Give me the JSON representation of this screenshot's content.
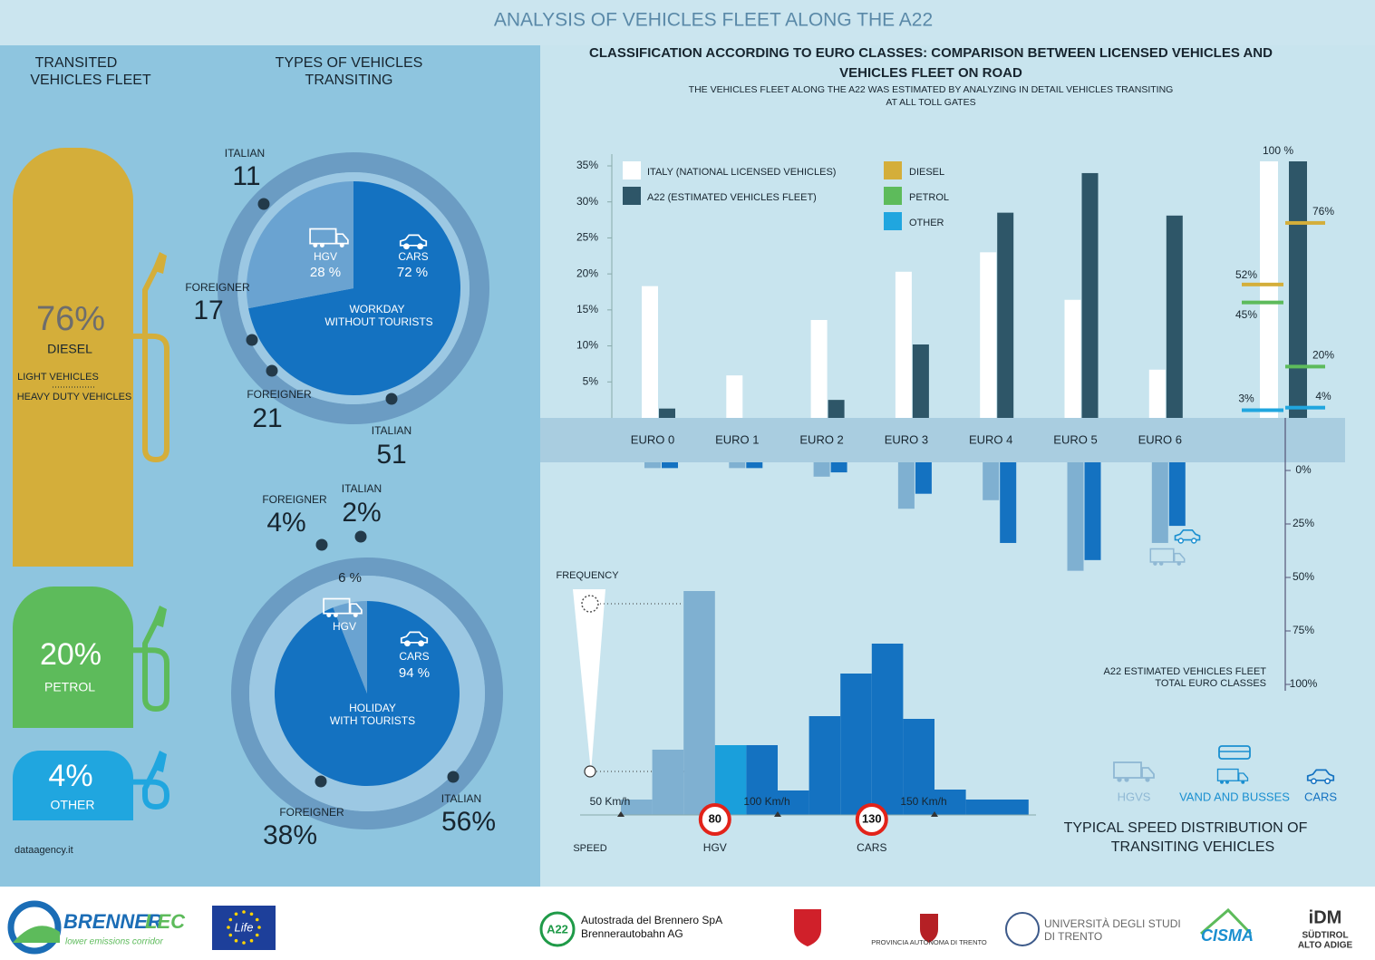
{
  "header": {
    "title": "ANALYSIS OF VEHICLES FLEET ALONG THE A22"
  },
  "fleet": {
    "title": [
      "TRANSITED",
      "VEHICLES FLEET"
    ],
    "items": [
      {
        "value": "76%",
        "name": "DIESEL",
        "color": "#d4ae3a"
      },
      {
        "value": "20%",
        "name": "PETROL",
        "color": "#5dbb5b"
      },
      {
        "value": "4%",
        "name": "OTHER",
        "color": "#20a6df"
      }
    ],
    "diesel_notes": [
      "LIGHT VEHICLES",
      "HEAVY DUTY VEHICLES"
    ],
    "source": "dataagency.it"
  },
  "types": {
    "title": [
      "TYPES OF VEHICLES",
      "TRANSITING"
    ],
    "charts": [
      {
        "caption": [
          "WORKDAY",
          "WITHOUT TOURISTS"
        ],
        "slices": [
          {
            "name": "CARS",
            "value": 72,
            "label": "72 %",
            "color": "#1472c1",
            "origins": [
              {
                "name": "FOREIGNER",
                "value": "21"
              },
              {
                "name": "ITALIAN",
                "value": "51"
              }
            ]
          },
          {
            "name": "HGV",
            "value": 28,
            "label": "28 %",
            "color": "#6aa3d1",
            "origins": [
              {
                "name": "ITALIAN",
                "value": "11"
              },
              {
                "name": "FOREIGNER",
                "value": "17"
              }
            ]
          }
        ]
      },
      {
        "caption": [
          "HOLIDAY",
          "WITH TOURISTS"
        ],
        "slices": [
          {
            "name": "CARS",
            "value": 94,
            "label": "94 %",
            "color": "#1472c1",
            "origins": [
              {
                "name": "FOREIGNER",
                "value": "38%"
              },
              {
                "name": "ITALIAN",
                "value": "56%"
              }
            ]
          },
          {
            "name": "HGV",
            "value": 6,
            "label": "6 %",
            "color": "#6aa3d1",
            "origins": [
              {
                "name": "FOREIGNER",
                "value": "4%"
              },
              {
                "name": "ITALIAN",
                "value": "2%"
              }
            ]
          }
        ]
      }
    ]
  },
  "euro": {
    "title": [
      "CLASSIFICATION ACCORDING TO EURO CLASSES: COMPARISON BETWEEN LICENSED VEHICLES AND",
      "VEHICLES FLEET ON ROAD"
    ],
    "subtitle": [
      "THE VEHICLES FLEET ALONG THE A22 WAS ESTIMATED BY ANALYZING IN DETAIL VEHICLES TRANSITING",
      "AT ALL TOLL GATES"
    ],
    "categories": [
      "EURO 0",
      "EURO 1",
      "EURO 2",
      "EURO 3",
      "EURO 4",
      "EURO 5",
      "EURO 6"
    ],
    "ylim": [
      0,
      35
    ],
    "yticks": [
      {
        "value": 5,
        "label": "5%"
      },
      {
        "value": 10,
        "label": "10%"
      },
      {
        "value": 15,
        "label": "15%"
      },
      {
        "value": 20,
        "label": "20%"
      },
      {
        "value": 25,
        "label": "25%"
      },
      {
        "value": 30,
        "label": "30%"
      },
      {
        "value": 35,
        "label": "35%"
      }
    ],
    "series": [
      {
        "name": "ITALY (NATIONAL LICENSED VEHICLES)",
        "color": "#ffffff",
        "values": [
          18.3,
          5.9,
          13.6,
          20.3,
          23,
          16.4,
          6.7
        ]
      },
      {
        "name": "A22 (ESTIMATED VEHICLES FLEET)",
        "color": "#2e5668",
        "values": [
          1.3,
          0,
          2.5,
          10.2,
          28.5,
          34,
          28.1
        ]
      }
    ],
    "lower": {
      "ylim": [
        0,
        100
      ],
      "yticks": [
        {
          "value": 0,
          "label": "0%"
        },
        {
          "value": 25,
          "label": "25%"
        },
        {
          "value": 50,
          "label": "50%"
        },
        {
          "value": 75,
          "label": "75%"
        },
        {
          "value": 100,
          "label": "100%"
        }
      ],
      "series": [
        {
          "color": "#7fb0d1",
          "values": [
            1,
            1,
            5,
            20,
            16,
            49,
            36
          ]
        },
        {
          "color": "#1472c1",
          "values": [
            1,
            1,
            3,
            13,
            36,
            44,
            28
          ]
        }
      ]
    },
    "fuel": {
      "types": [
        {
          "name": "DIESEL",
          "color": "#d4ae3a"
        },
        {
          "name": "PETROL",
          "color": "#5dbb5b"
        },
        {
          "name": "OTHER",
          "color": "#20a6df"
        }
      ],
      "total": {
        "value": 100,
        "label": "100 %"
      },
      "italy": {
        "values": [
          52,
          45,
          3
        ],
        "value_labels": [
          "52%",
          "45%",
          "3%"
        ]
      },
      "a22": {
        "values": [
          76,
          20,
          4
        ],
        "value_labels": [
          "76%",
          "20%",
          "4%"
        ]
      }
    },
    "total_caption": [
      "A22  ESTIMATED VEHICLES FLEET",
      "TOTAL EURO CLASSES"
    ]
  },
  "speed": {
    "title": [
      "TYPICAL SPEED DISTRIBUTION OF",
      "TRANSITING VEHICLES"
    ],
    "ylabel": "FREQUENCY",
    "xlabel": "SPEED",
    "bins": [
      50,
      60,
      70,
      80,
      90,
      100,
      110,
      120,
      130,
      140,
      150,
      160,
      180
    ],
    "values": [
      17,
      72,
      247,
      77,
      77,
      27,
      109,
      156,
      189,
      106,
      28,
      17
    ],
    "colors": [
      "#7fb0d1",
      "#7fb0d1",
      "#7fb0d1",
      "#1a9fdb",
      "#1472c1",
      "#1472c1",
      "#1472c1",
      "#1472c1",
      "#1472c1",
      "#1472c1",
      "#1472c1",
      "#1472c1"
    ],
    "ylim": [
      0,
      250
    ],
    "xticks": [
      {
        "value": 50,
        "label": "50 Km/h"
      },
      {
        "value": 100,
        "label": "100  Km/h"
      },
      {
        "value": 150,
        "label": "150 Km/h"
      }
    ],
    "limits": [
      {
        "value": 80,
        "label": "HGV"
      },
      {
        "value": 130,
        "label": "CARS"
      }
    ],
    "legend": [
      {
        "name": "HGVS",
        "color": "#8fb8d4"
      },
      {
        "name": "VAND AND BUSSES",
        "color": "#1a8fd0"
      },
      {
        "name": "CARS",
        "color": "#1472c1"
      }
    ]
  },
  "footer": {
    "logos": [
      "BRENNER",
      "LEC",
      "lower emissions corridor",
      "Life",
      "A22",
      "Autostrada del Brennero SpA",
      "Brennerautobahn AG",
      "PROVINCIA AUTONOMA DI TRENTO",
      "UNIVERSITÀ DEGLI STUDI",
      "DI TRENTO",
      "CISMA",
      "iDM",
      "SÜDTIROL",
      "ALTO ADIGE"
    ]
  }
}
